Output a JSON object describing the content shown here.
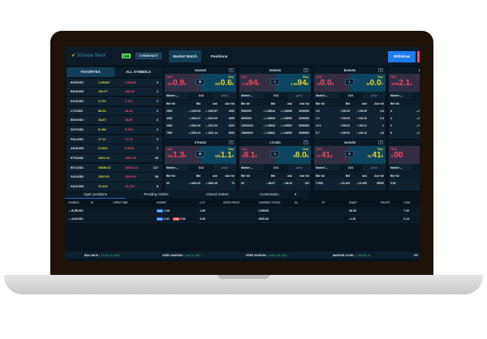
{
  "header": {
    "logo": "Xtreme Next",
    "live": "LIVE",
    "account": "XTREMENEXT",
    "tabs": [
      "Market Watch",
      "Positions"
    ],
    "withdraw": "Withdraw"
  },
  "watchlist": {
    "tabs": [
      "FAVORITES",
      "ALL SYMBOLS"
    ],
    "rows": [
      [
        "EURUSD",
        "1.08945",
        "1.08948",
        "3"
      ],
      [
        "BCHUSD",
        "190.07",
        "190.08",
        "1"
      ],
      [
        "EOSUSD",
        "0.720",
        "0.721",
        "1"
      ],
      [
        "LTCUSD",
        "88.08",
        "88.10",
        "2"
      ],
      [
        "BSVUSD",
        "34.87",
        "34.89",
        "2"
      ],
      [
        "DOTUSD",
        "5.158",
        "5.159",
        "1"
      ],
      [
        "SOLUSD",
        "17.11",
        "17.14",
        "3"
      ],
      [
        "ADAUSD",
        "0.2932",
        "0.2933",
        "1"
      ],
      [
        "ETHUSD",
        "1891.10",
        "1891.30",
        "20"
      ],
      [
        "BTCUSD",
        "30580.67",
        "30582.14",
        "127"
      ],
      [
        "XAUUSD",
        "1920.60",
        "1920.90",
        "30"
      ],
      [
        "XAGUSD",
        "22.410",
        "22.418",
        "8"
      ]
    ]
  },
  "card_labels": {
    "sell": "Sell",
    "buy": "Buy",
    "market": "Market",
    "qty": "0.01",
    "price": "price",
    "close": "x",
    "cols": [
      "Bid Vol",
      "Bid",
      "Ask",
      "Ask Vol"
    ]
  },
  "cards": [
    {
      "symbol": "XAUUSD",
      "sell": [
        "192",
        "0.9",
        "0"
      ],
      "buy": [
        "192",
        "0.6",
        "0"
      ],
      "spread": "30",
      "dir": "up",
      "rows": [
        [
          "2500",
          "1920.54",
          "1920.87",
          "2500"
        ],
        [
          "4000",
          "1920.47",
          "1921.00",
          "4000"
        ],
        [
          "4000",
          "1920.40",
          "1921.00",
          "3100"
        ],
        [
          "7500",
          "1920.34",
          "1921.14",
          "5000"
        ]
      ]
    },
    {
      "symbol": "EURUSD",
      "sell": [
        "1.08",
        "94",
        "6"
      ],
      "buy": [
        "1.08",
        "94",
        "9"
      ],
      "spread": "3",
      "dir": "up",
      "rows": [
        [
          "5000000",
          "1.08944",
          "1.08949",
          "3000000"
        ],
        [
          "6000000",
          "1.08943",
          "1.08950",
          "4000000"
        ],
        [
          "10000000",
          "1.08942",
          "1.08951",
          "3000000"
        ],
        [
          "15000000",
          "1.08941",
          "1.08952",
          "6000000"
        ]
      ]
    },
    {
      "symbol": "BCHUSD",
      "sell": [
        "19",
        "0.0",
        "6"
      ],
      "buy": [
        "19",
        "0.0",
        "7"
      ],
      "spread": "1",
      "dir": "down",
      "rows": [
        [
          "0.8",
          "190.06",
          "190.09",
          "0.6"
        ],
        [
          "1.2",
          "190.05",
          "190.10",
          "2.4"
        ],
        [
          "12.2",
          "190.04",
          "190.11",
          "1"
        ],
        [
          "0.7",
          "190.03",
          "190.12",
          "2.8"
        ]
      ]
    },
    {
      "symbol": "BTCUSD",
      "sell": [
        "3058",
        "2.1",
        "4"
      ],
      "buy": [
        "",
        "",
        ""
      ],
      "spread": "",
      "dir": "up",
      "rows": [
        [
          "4",
          "3057",
          "",
          ""
        ],
        [
          "4",
          "3057",
          "",
          ""
        ],
        [
          "2",
          "3057",
          "",
          ""
        ],
        [
          "5",
          "3057",
          "",
          ""
        ]
      ]
    },
    {
      "symbol": "ETHUSD",
      "sell": [
        "189",
        "1.3",
        "0"
      ],
      "buy": [
        "189",
        "1.1",
        "0"
      ],
      "spread": "20",
      "dir": "up",
      "rows": [
        [
          "35",
          "1891.00",
          "1891.40",
          "71"
        ]
      ]
    },
    {
      "symbol": "LTCUSD",
      "sell": [
        "8",
        "8.1",
        "0"
      ],
      "buy": [
        "8",
        "8.0",
        "8"
      ],
      "spread": "2",
      "dir": "up",
      "rows": [
        [
          "63",
          "88.07",
          "88.12",
          "102"
        ]
      ]
    },
    {
      "symbol": "XAGUSD",
      "sell": [
        "22.",
        "41",
        "8"
      ],
      "buy": [
        "22.",
        "41",
        "0"
      ],
      "spread": "8",
      "dir": "up",
      "rows": [
        [
          "17500",
          "22.403",
          "22.405",
          "25000"
        ]
      ]
    },
    {
      "symbol": "",
      "sell": [
        "0.",
        "00",
        ""
      ],
      "buy": [
        "",
        "",
        ""
      ],
      "spread": "",
      "dir": "up",
      "rows": [
        [
          "0.00",
          "",
          "",
          ""
        ]
      ]
    }
  ],
  "positions": {
    "tabs": [
      "Open positions",
      "Pending Orders",
      "Closed Orders",
      "Commission"
    ],
    "columns": [
      "SYMBOL",
      "ID",
      "OPEN TIME",
      "ORDER",
      "LOT",
      "OPEN PRICE",
      "CURRENT PRICE",
      "SL",
      "TP",
      "SWAP",
      "PROFIT",
      "COM"
    ],
    "rows": [
      {
        "symbol": "EURUSD",
        "buy": "1.00",
        "sell": "",
        "lot": "1.00",
        "current": "1.08945",
        "swap": "38.35",
        "com": "7.00"
      },
      {
        "symbol": "XAUUSD",
        "buy": "0.01",
        "sell": "0.01",
        "lot": "0.00",
        "current": "1920.60",
        "swap": "-1.15",
        "com": "0.14"
      }
    ],
    "buy_label": "buy",
    "sell_label": "sell"
  },
  "footer": [
    {
      "label": "BALANCE",
      "value": "17184.20 USD"
    },
    {
      "label": "USED MARGIN",
      "value": "226.30 USD"
    },
    {
      "label": "FREE MARGIN",
      "value": "16957.90 USD"
    },
    {
      "label": "MARGIN LEVEL",
      "value": "7493.56 %"
    },
    {
      "label": "PR",
      "value": ""
    }
  ]
}
